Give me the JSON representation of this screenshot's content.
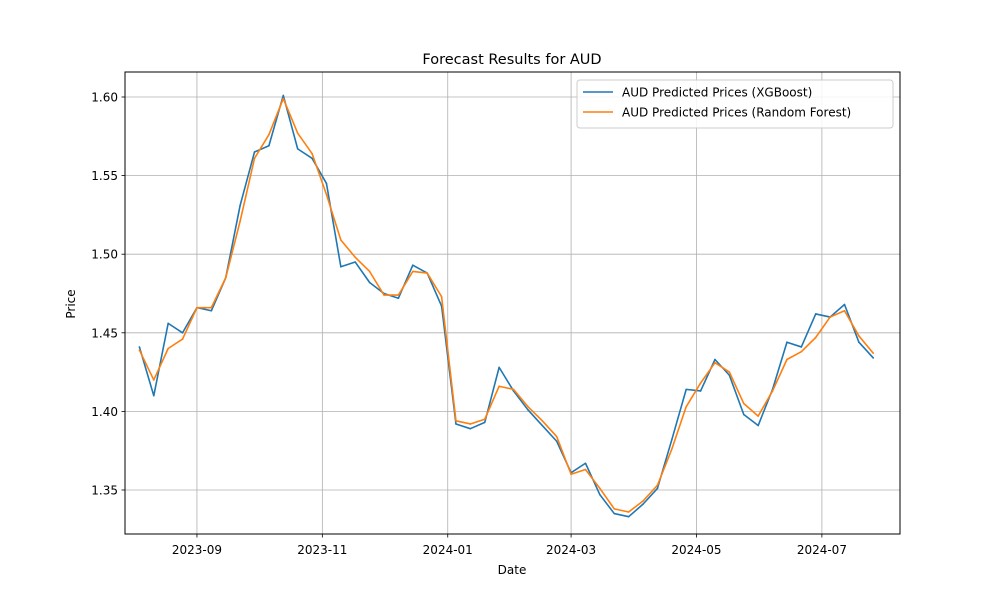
{
  "chart_data": {
    "type": "line",
    "title": "Forecast Results for AUD",
    "xlabel": "Date",
    "ylabel": "Price",
    "grid": true,
    "legend_position": "upper-right",
    "xlim": [
      "2023-07-28",
      "2024-08-08"
    ],
    "ylim": [
      1.322,
      1.6159
    ],
    "x_ticks": [
      {
        "date": "2023-09-01",
        "label": "2023-09"
      },
      {
        "date": "2023-11-01",
        "label": "2023-11"
      },
      {
        "date": "2024-01-01",
        "label": "2024-01"
      },
      {
        "date": "2024-03-01",
        "label": "2024-03"
      },
      {
        "date": "2024-05-01",
        "label": "2024-05"
      },
      {
        "date": "2024-07-01",
        "label": "2024-07"
      }
    ],
    "y_ticks": [
      {
        "value": 1.35,
        "label": "1.35"
      },
      {
        "value": 1.4,
        "label": "1.40"
      },
      {
        "value": 1.45,
        "label": "1.45"
      },
      {
        "value": 1.5,
        "label": "1.50"
      },
      {
        "value": 1.55,
        "label": "1.55"
      },
      {
        "value": 1.6,
        "label": "1.60"
      }
    ],
    "x": [
      "2023-08-04",
      "2023-08-11",
      "2023-08-18",
      "2023-08-25",
      "2023-09-01",
      "2023-09-08",
      "2023-09-15",
      "2023-09-22",
      "2023-09-29",
      "2023-10-06",
      "2023-10-13",
      "2023-10-20",
      "2023-10-27",
      "2023-11-03",
      "2023-11-10",
      "2023-11-17",
      "2023-11-24",
      "2023-12-01",
      "2023-12-08",
      "2023-12-15",
      "2023-12-22",
      "2023-12-29",
      "2024-01-05",
      "2024-01-12",
      "2024-01-19",
      "2024-01-26",
      "2024-02-02",
      "2024-02-09",
      "2024-02-16",
      "2024-02-23",
      "2024-03-01",
      "2024-03-08",
      "2024-03-15",
      "2024-03-22",
      "2024-03-29",
      "2024-04-05",
      "2024-04-12",
      "2024-04-19",
      "2024-04-26",
      "2024-05-03",
      "2024-05-10",
      "2024-05-17",
      "2024-05-24",
      "2024-05-31",
      "2024-06-07",
      "2024-06-14",
      "2024-06-21",
      "2024-06-28",
      "2024-07-05",
      "2024-07-12",
      "2024-07-19",
      "2024-07-26"
    ],
    "series": [
      {
        "name": "AUD Predicted Prices (XGBoost)",
        "color": "#1f77b4",
        "values": [
          1.441,
          1.41,
          1.456,
          1.45,
          1.466,
          1.464,
          1.485,
          1.531,
          1.565,
          1.569,
          1.601,
          1.567,
          1.561,
          1.545,
          1.492,
          1.495,
          1.482,
          1.475,
          1.472,
          1.493,
          1.488,
          1.467,
          1.392,
          1.389,
          1.393,
          1.428,
          1.413,
          1.401,
          1.391,
          1.381,
          1.361,
          1.367,
          1.347,
          1.335,
          1.333,
          1.341,
          1.351,
          1.382,
          1.414,
          1.413,
          1.433,
          1.423,
          1.398,
          1.391,
          1.414,
          1.444,
          1.441,
          1.462,
          1.46,
          1.468,
          1.444,
          1.434
        ]
      },
      {
        "name": "AUD Predicted Prices (Random Forest)",
        "color": "#ff7f0e",
        "values": [
          1.439,
          1.42,
          1.44,
          1.446,
          1.466,
          1.466,
          1.485,
          1.521,
          1.561,
          1.576,
          1.599,
          1.577,
          1.564,
          1.538,
          1.509,
          1.498,
          1.489,
          1.474,
          1.474,
          1.489,
          1.488,
          1.473,
          1.394,
          1.392,
          1.395,
          1.416,
          1.414,
          1.403,
          1.394,
          1.384,
          1.36,
          1.363,
          1.351,
          1.338,
          1.336,
          1.343,
          1.353,
          1.376,
          1.403,
          1.418,
          1.431,
          1.425,
          1.405,
          1.397,
          1.413,
          1.433,
          1.438,
          1.447,
          1.46,
          1.464,
          1.448,
          1.437
        ]
      }
    ]
  }
}
